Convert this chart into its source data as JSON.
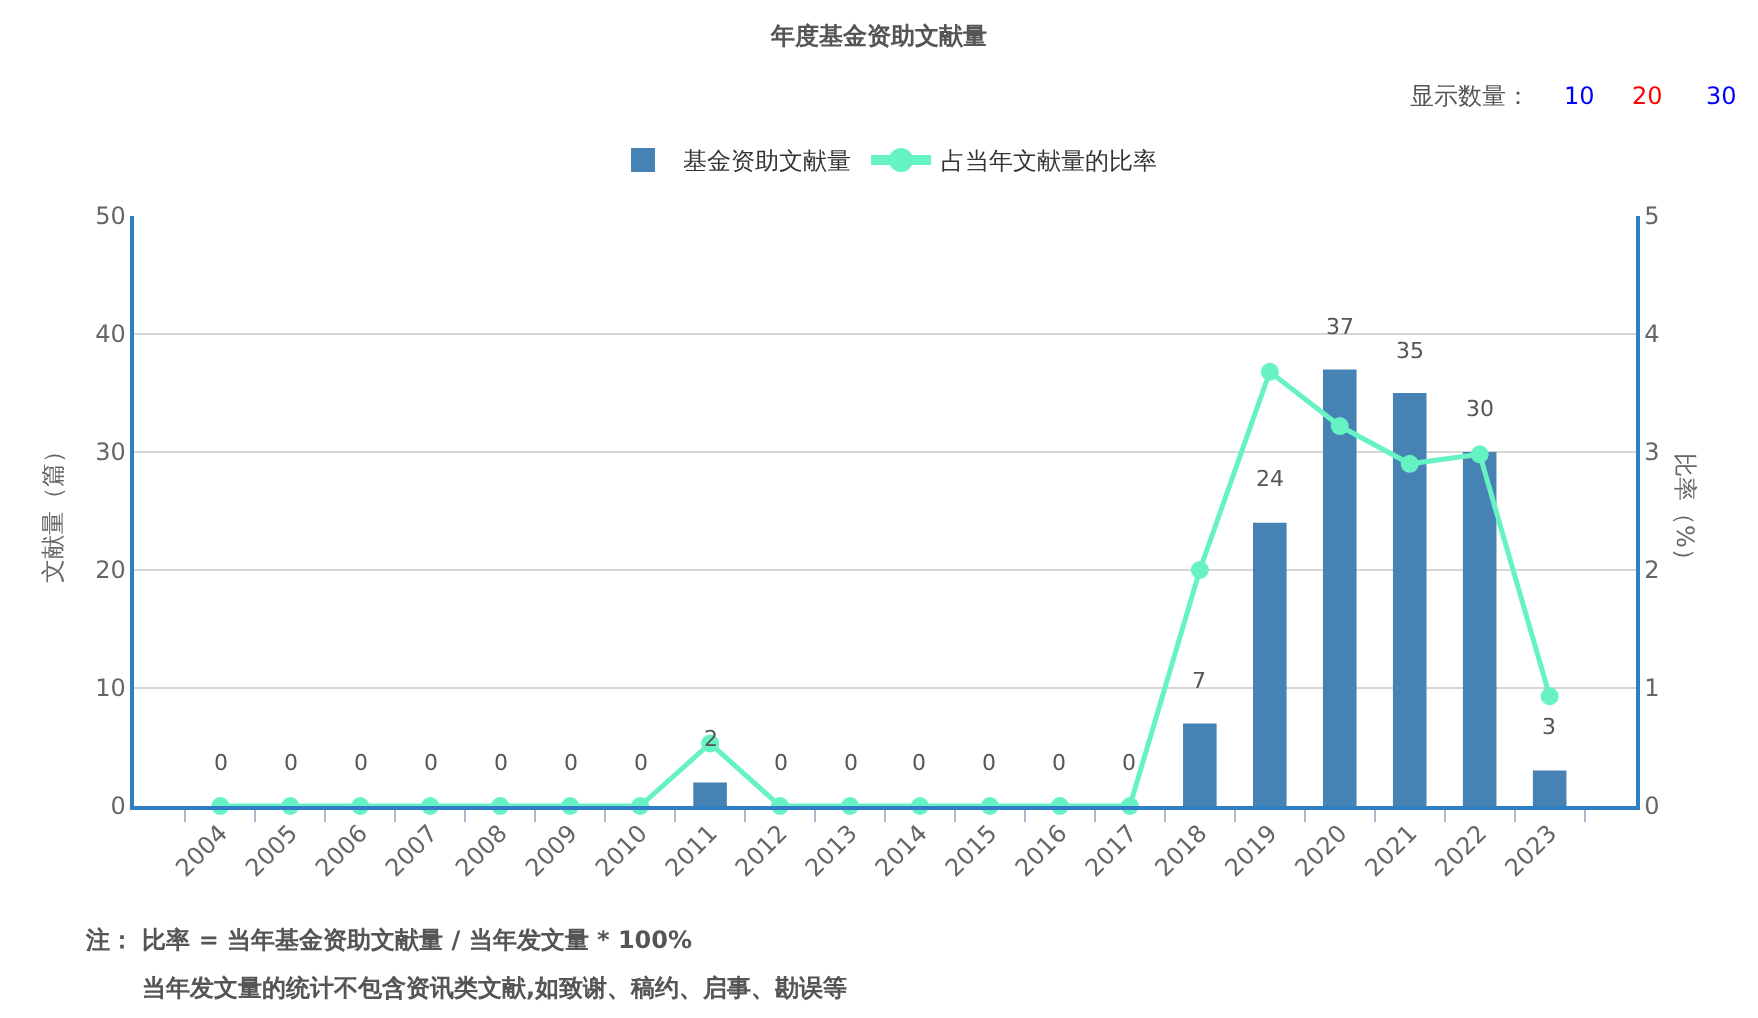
{
  "chart_data": {
    "type": "bar",
    "title": "年度基金资助文献量",
    "ylabel": "文献量（篇）",
    "y2label": "比率（%）",
    "categories": [
      "2004",
      "2005",
      "2006",
      "2007",
      "2008",
      "2009",
      "2010",
      "2011",
      "2012",
      "2013",
      "2014",
      "2015",
      "2016",
      "2017",
      "2018",
      "2019",
      "2020",
      "2021",
      "2022",
      "2023"
    ],
    "series": [
      {
        "name": "基金资助文献量",
        "color": "#4682b4",
        "values": [
          0,
          0,
          0,
          0,
          0,
          0,
          0,
          2,
          0,
          0,
          0,
          0,
          0,
          0,
          7,
          24,
          37,
          35,
          30,
          3
        ],
        "value_labels": [
          "0",
          "0",
          "0",
          "0",
          "0",
          "0",
          "0",
          "2",
          "0",
          "0",
          "0",
          "0",
          "0",
          "0",
          "7",
          "24",
          "37",
          "35",
          "30",
          "3"
        ]
      },
      {
        "name": "占当年文献量的比率",
        "type": "line",
        "axis": "y2",
        "color": "#66f2c2",
        "values": [
          0,
          0,
          0,
          0,
          0,
          0,
          0,
          0.53,
          0,
          0,
          0,
          0,
          0,
          0,
          2.0,
          3.68,
          3.22,
          2.9,
          2.98,
          0.93
        ]
      }
    ],
    "ylim": [
      0,
      50
    ],
    "yticks": [
      0,
      10,
      20,
      30,
      40,
      50
    ],
    "y2lim": [
      0,
      5
    ],
    "y2ticks": [
      0,
      1,
      2,
      3,
      4,
      5
    ],
    "grid": "y",
    "legend": "top",
    "marker": "circle",
    "line_style": "solid",
    "annotations": [
      "显示数量：",
      "10",
      "20",
      "30",
      "注： 比率 = 当年基金资助文献量 / 当年发文量 * 100%",
      "当年发文量的统计不包含资讯类文献,如致谢、稿约、启事、勘误等"
    ]
  }
}
